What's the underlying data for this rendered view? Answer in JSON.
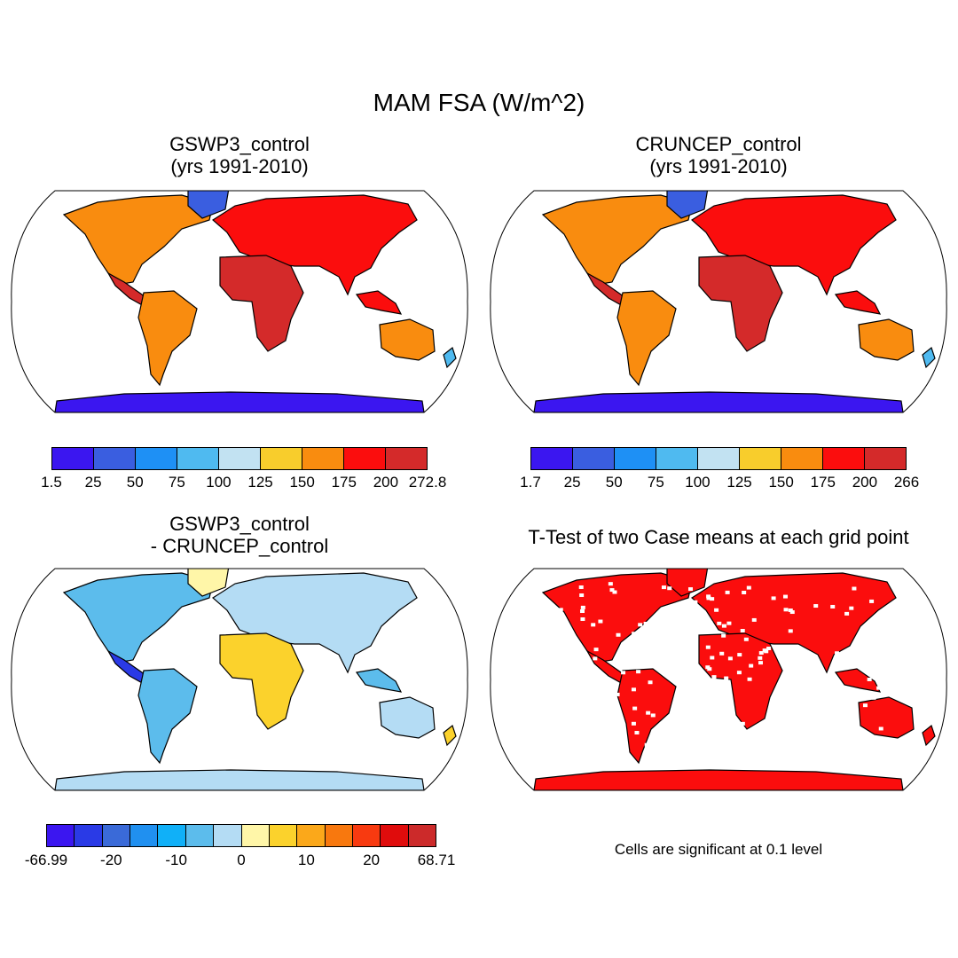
{
  "title": "MAM FSA (W/m^2)",
  "panels": {
    "top_left": {
      "title_line1": "GSWP3_control",
      "title_line2": "(yrs 1991-2010)",
      "colorbar": {
        "colors": [
          "#3b16f0",
          "#3a5ee0",
          "#1e90f5",
          "#4fbaf0",
          "#c2e2f2",
          "#f8cd2c",
          "#f98c0f",
          "#fb0d0d",
          "#d42a2a"
        ],
        "labels": [
          "1.5",
          "25",
          "50",
          "75",
          "100",
          "125",
          "150",
          "175",
          "200",
          "272.8"
        ]
      }
    },
    "top_right": {
      "title_line1": "CRUNCEP_control",
      "title_line2": "(yrs 1991-2010)",
      "colorbar": {
        "colors": [
          "#3b16f0",
          "#3a5ee0",
          "#1e90f5",
          "#4fbaf0",
          "#c2e2f2",
          "#f8cd2c",
          "#f98c0f",
          "#fb0d0d",
          "#d42a2a"
        ],
        "labels": [
          "1.7",
          "25",
          "50",
          "75",
          "100",
          "125",
          "150",
          "175",
          "200",
          "266"
        ]
      }
    },
    "bottom_left": {
      "title_line1": "GSWP3_control",
      "title_line2": "- CRUNCEP_control",
      "colorbar": {
        "colors": [
          "#3b16f0",
          "#2a3ae6",
          "#3a6ad8",
          "#2090f0",
          "#10b0f8",
          "#5cbcec",
          "#b4dcf4",
          "#fff6a8",
          "#fbd22c",
          "#fba81a",
          "#f8780e",
          "#f83a10",
          "#e00c0c",
          "#cc2a2a"
        ],
        "labels": [
          "-66.99",
          "-20",
          "-10",
          "0",
          "10",
          "20",
          "68.71"
        ]
      }
    },
    "bottom_right": {
      "title": "T-Test of two Case means at each grid point",
      "note": "Cells are significant at 0.1 level"
    }
  },
  "maps": {
    "ocean_color": "#ffffff",
    "outline_color": "#000000"
  }
}
